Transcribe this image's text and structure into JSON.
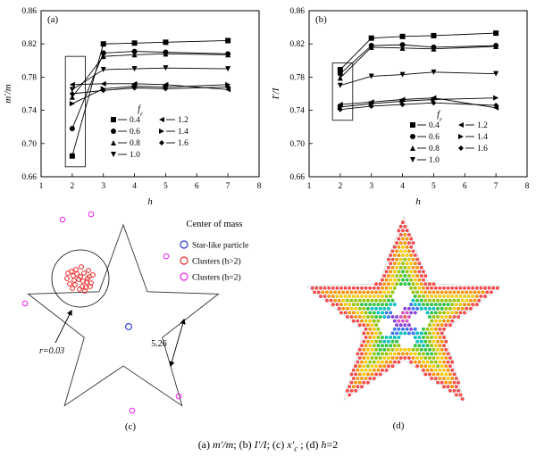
{
  "figure": {
    "caption_parts": [
      {
        "t": "(a) "
      },
      {
        "t": "m′/m",
        "i": true
      },
      {
        "t": "; (b) "
      },
      {
        "t": "I′/I",
        "i": true
      },
      {
        "t": "; (c) "
      },
      {
        "t": "x′",
        "i": true
      },
      {
        "t": "c",
        "i": true,
        "sub": true
      },
      {
        "t": " ; (d) "
      },
      {
        "t": "h",
        "i": true
      },
      {
        "t": "=2"
      }
    ]
  },
  "chart_data": [
    {
      "id": "a",
      "type": "line",
      "panel_label": "(a)",
      "xlabel": "h",
      "ylabel": "m′/m",
      "xlim": [
        1,
        8
      ],
      "ylim": [
        0.66,
        0.86
      ],
      "xticks": [
        1,
        2,
        3,
        4,
        5,
        6,
        7,
        8
      ],
      "ytick_labels": [
        "0.66",
        "0.70",
        "0.74",
        "0.78",
        "0.82",
        "0.86"
      ],
      "x": [
        2,
        3,
        4,
        5,
        7
      ],
      "legend_title_main": "f",
      "legend_title_sub": "r",
      "legend_pos": {
        "x": 127,
        "y": 134
      },
      "highlight_box": {
        "x0": 1.78,
        "x1": 2.42,
        "y0": 0.672,
        "y1": 0.805
      },
      "series": [
        {
          "name": "0.4",
          "marker": "square",
          "values": [
            0.685,
            0.82,
            0.821,
            0.822,
            0.824
          ]
        },
        {
          "name": "0.6",
          "marker": "circle",
          "values": [
            0.718,
            0.809,
            0.811,
            0.81,
            0.808
          ]
        },
        {
          "name": "0.8",
          "marker": "triangle-up",
          "values": [
            0.756,
            0.805,
            0.807,
            0.808,
            0.807
          ]
        },
        {
          "name": "1.0",
          "marker": "triangle-down",
          "values": [
            0.765,
            0.789,
            0.79,
            0.791,
            0.79
          ]
        },
        {
          "name": "1.2",
          "marker": "triangle-left",
          "values": [
            0.771,
            0.772,
            0.772,
            0.771,
            0.765
          ]
        },
        {
          "name": "1.4",
          "marker": "triangle-right",
          "values": [
            0.748,
            0.766,
            0.769,
            0.768,
            0.771
          ]
        },
        {
          "name": "1.6",
          "marker": "diamond",
          "values": [
            0.76,
            0.764,
            0.767,
            0.766,
            0.768
          ]
        }
      ]
    },
    {
      "id": "b",
      "type": "line",
      "panel_label": "(b)",
      "xlabel": "h",
      "ylabel": "I′/I",
      "xlim": [
        1,
        8
      ],
      "ylim": [
        0.66,
        0.86
      ],
      "xticks": [
        1,
        2,
        3,
        4,
        5,
        6,
        7,
        8
      ],
      "ytick_labels": [
        "0.66",
        "0.70",
        "0.74",
        "0.78",
        "0.82",
        "0.86"
      ],
      "x": [
        2,
        3,
        4,
        5,
        7
      ],
      "legend_title_main": "f",
      "legend_title_sub": "r",
      "legend_pos": {
        "x": 162,
        "y": 140
      },
      "highlight_box": {
        "x0": 1.75,
        "x1": 2.4,
        "y0": 0.728,
        "y1": 0.797
      },
      "series": [
        {
          "name": "0.4",
          "marker": "square",
          "values": [
            0.789,
            0.827,
            0.829,
            0.83,
            0.833
          ]
        },
        {
          "name": "0.6",
          "marker": "circle",
          "values": [
            0.784,
            0.818,
            0.819,
            0.816,
            0.818
          ]
        },
        {
          "name": "0.8",
          "marker": "triangle-up",
          "values": [
            0.779,
            0.816,
            0.815,
            0.814,
            0.817
          ]
        },
        {
          "name": "1.0",
          "marker": "triangle-down",
          "values": [
            0.77,
            0.781,
            0.783,
            0.786,
            0.784
          ]
        },
        {
          "name": "1.2",
          "marker": "triangle-left",
          "values": [
            0.747,
            0.75,
            0.753,
            0.755,
            0.743
          ]
        },
        {
          "name": "1.4",
          "marker": "triangle-right",
          "values": [
            0.744,
            0.748,
            0.751,
            0.753,
            0.755
          ]
        },
        {
          "name": "1.6",
          "marker": "diamond",
          "values": [
            0.741,
            0.745,
            0.747,
            0.749,
            0.746
          ]
        }
      ]
    }
  ],
  "panel_c": {
    "panel_label": "(c)",
    "legend_title": "Center of mass",
    "legend_items": [
      {
        "label": "Star-like particle",
        "color": "#2233cc"
      },
      {
        "label": "Clusters (h>2)",
        "color": "#ee2222"
      },
      {
        "label": "Clusters (h=2)",
        "color": "#ee22ee"
      }
    ],
    "radius_label": "r=0.03",
    "gap_label": "5.26",
    "cluster_points": [
      [
        -2,
        1
      ],
      [
        4,
        -6
      ],
      [
        -8,
        -3
      ],
      [
        7,
        4
      ],
      [
        -12,
        6
      ],
      [
        2,
        9
      ],
      [
        10,
        -2
      ],
      [
        -5,
        -10
      ],
      [
        0,
        -2
      ],
      [
        6,
        10
      ],
      [
        -10,
        -8
      ],
      [
        12,
        5
      ],
      [
        -15,
        0
      ],
      [
        3,
        3
      ],
      [
        -6,
        7
      ],
      [
        9,
        -9
      ],
      [
        -1,
        12
      ],
      [
        14,
        -4
      ],
      [
        -9,
        11
      ],
      [
        1,
        -13
      ],
      [
        -14,
        -6
      ],
      [
        8,
        0
      ],
      [
        -4,
        -5
      ],
      [
        5,
        14
      ],
      [
        11,
        9
      ],
      [
        -7,
        2
      ]
    ],
    "outlier_points": [
      [
        70,
        14
      ],
      [
        102,
        8
      ],
      [
        186,
        55
      ],
      [
        28,
        108
      ],
      [
        200,
        212
      ],
      [
        148,
        228
      ]
    ],
    "star_particle_point": [
      144,
      134
    ]
  },
  "panel_d": {
    "panel_label": "(d)",
    "palette": [
      "#ff4d4d",
      "#ff9a00",
      "#ffd400",
      "#9acd00",
      "#2ecc40",
      "#00c8c8",
      "#3a7bff",
      "#8e44e0",
      "#e052c8"
    ],
    "band_width": 5.0
  }
}
